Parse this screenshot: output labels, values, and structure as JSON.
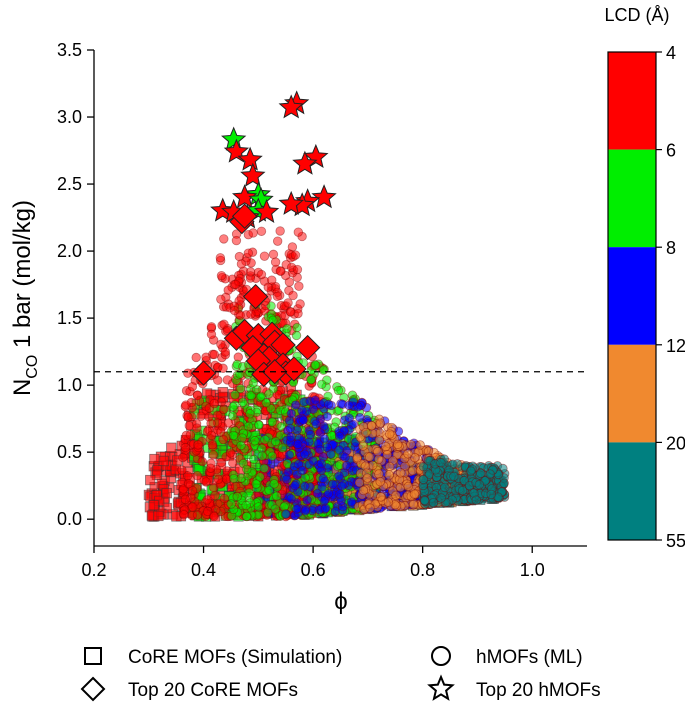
{
  "chart_data": {
    "type": "scatter",
    "xlabel": "ϕ",
    "ylabel": "N",
    "ylabel_sub": "CO",
    "ylabel_rest": " 1 bar (mol/kg)",
    "xlim": [
      0.2,
      1.1
    ],
    "ylim": [
      -0.2,
      3.5
    ],
    "xticks": [
      0.2,
      0.4,
      0.6,
      0.8,
      1.0
    ],
    "xtick_labels": [
      "0.2",
      "0.4",
      "0.6",
      "0.8",
      "1.0"
    ],
    "yticks": [
      0.0,
      0.5,
      1.0,
      1.5,
      2.0,
      2.5,
      3.0,
      3.5
    ],
    "ytick_labels": [
      "0.0",
      "0.5",
      "1.0",
      "1.5",
      "2.0",
      "2.5",
      "3.0",
      "3.5"
    ],
    "threshold_line": {
      "y": 1.1,
      "style": "dashed"
    },
    "colorbar": {
      "title": "LCD (Å)",
      "tick_labels": [
        "4",
        "6",
        "8",
        "12",
        "20",
        "55"
      ],
      "bands": [
        {
          "from": "4",
          "to": "6",
          "color": "#ff0000"
        },
        {
          "from": "6",
          "to": "8",
          "color": "#00ee00"
        },
        {
          "from": "8",
          "to": "12",
          "color": "#0000ff"
        },
        {
          "from": "12",
          "to": "20",
          "color": "#f0892f"
        },
        {
          "from": "20",
          "to": "55",
          "color": "#008080"
        }
      ]
    },
    "legend": [
      {
        "marker": "square",
        "label": "CoRE MOFs (Simulation)"
      },
      {
        "marker": "circle",
        "label": "hMOFs (ML)"
      },
      {
        "marker": "diamond",
        "label": "Top 20 CoRE MOFs"
      },
      {
        "marker": "star",
        "label": "Top 20 hMOFs"
      }
    ],
    "series": [
      {
        "name": "Top 20 hMOFs",
        "marker": "star",
        "points": [
          {
            "x": 0.57,
            "y": 3.1,
            "c": "#ff0000"
          },
          {
            "x": 0.56,
            "y": 3.07,
            "c": "#ff0000"
          },
          {
            "x": 0.455,
            "y": 2.83,
            "c": "#00ee00"
          },
          {
            "x": 0.46,
            "y": 2.74,
            "c": "#ff0000"
          },
          {
            "x": 0.485,
            "y": 2.68,
            "c": "#ff0000"
          },
          {
            "x": 0.605,
            "y": 2.7,
            "c": "#ff0000"
          },
          {
            "x": 0.585,
            "y": 2.65,
            "c": "#ff0000"
          },
          {
            "x": 0.49,
            "y": 2.56,
            "c": "#ff0000"
          },
          {
            "x": 0.5,
            "y": 2.42,
            "c": "#00ee00"
          },
          {
            "x": 0.475,
            "y": 2.4,
            "c": "#ff0000"
          },
          {
            "x": 0.505,
            "y": 2.38,
            "c": "#00ee00"
          },
          {
            "x": 0.62,
            "y": 2.4,
            "c": "#ff0000"
          },
          {
            "x": 0.59,
            "y": 2.37,
            "c": "#ff0000"
          },
          {
            "x": 0.58,
            "y": 2.34,
            "c": "#ff0000"
          },
          {
            "x": 0.56,
            "y": 2.35,
            "c": "#ff0000"
          },
          {
            "x": 0.435,
            "y": 2.3,
            "c": "#ff0000"
          },
          {
            "x": 0.455,
            "y": 2.29,
            "c": "#ff0000"
          },
          {
            "x": 0.5,
            "y": 2.3,
            "c": "#00ee00"
          },
          {
            "x": 0.515,
            "y": 2.29,
            "c": "#ff0000"
          },
          {
            "x": 0.48,
            "y": 2.25,
            "c": "#ff0000"
          }
        ]
      },
      {
        "name": "Top 20 CoRE MOFs",
        "marker": "diamond",
        "points": [
          {
            "x": 0.47,
            "y": 2.22,
            "c": "#ff0000"
          },
          {
            "x": 0.475,
            "y": 2.26,
            "c": "#ff0000"
          },
          {
            "x": 0.495,
            "y": 1.66,
            "c": "#ff0000"
          },
          {
            "x": 0.46,
            "y": 1.35,
            "c": "#ff0000"
          },
          {
            "x": 0.475,
            "y": 1.4,
            "c": "#ff0000"
          },
          {
            "x": 0.5,
            "y": 1.37,
            "c": "#ff0000"
          },
          {
            "x": 0.525,
            "y": 1.38,
            "c": "#ff0000"
          },
          {
            "x": 0.53,
            "y": 1.32,
            "c": "#ff0000"
          },
          {
            "x": 0.545,
            "y": 1.3,
            "c": "#ff0000"
          },
          {
            "x": 0.49,
            "y": 1.28,
            "c": "#ff0000"
          },
          {
            "x": 0.51,
            "y": 1.22,
            "c": "#ff0000"
          },
          {
            "x": 0.52,
            "y": 1.2,
            "c": "#ff0000"
          },
          {
            "x": 0.5,
            "y": 1.18,
            "c": "#ff0000"
          },
          {
            "x": 0.545,
            "y": 1.15,
            "c": "#ff0000"
          },
          {
            "x": 0.59,
            "y": 1.28,
            "c": "#ff0000"
          },
          {
            "x": 0.4,
            "y": 1.09,
            "c": "#ff0000"
          },
          {
            "x": 0.51,
            "y": 1.08,
            "c": "#ff0000"
          },
          {
            "x": 0.55,
            "y": 1.09,
            "c": "#ff0000"
          },
          {
            "x": 0.565,
            "y": 1.12,
            "c": "#ff0000"
          },
          {
            "x": 0.53,
            "y": 1.1,
            "c": "#ff0000"
          }
        ]
      }
    ],
    "bulk_series": [
      {
        "name": "hMOFs (ML)",
        "marker": "circle",
        "description": "dense cloud of ~thousands of points colored by LCD",
        "lcd_groups": [
          {
            "color": "#ff0000",
            "x_range": [
              0.36,
              0.62
            ],
            "y_peak": 2.1
          },
          {
            "color": "#00ee00",
            "x_range": [
              0.45,
              0.72
            ],
            "y_peak": 1.6
          },
          {
            "color": "#0000ff",
            "x_range": [
              0.55,
              0.82
            ],
            "y_peak": 0.9
          },
          {
            "color": "#f0892f",
            "x_range": [
              0.68,
              0.9
            ],
            "y_peak": 0.75
          },
          {
            "color": "#008080",
            "x_range": [
              0.8,
              0.95
            ],
            "y_peak": 0.45
          }
        ]
      },
      {
        "name": "CoRE MOFs (Simulation)",
        "marker": "square",
        "description": "dense cloud of squares colored by LCD",
        "lcd_groups": [
          {
            "color": "#ff0000",
            "x_range": [
              0.3,
              0.6
            ],
            "y_peak": 1.0
          },
          {
            "color": "#00ee00",
            "x_range": [
              0.38,
              0.7
            ],
            "y_peak": 0.9
          },
          {
            "color": "#0000ff",
            "x_range": [
              0.5,
              0.8
            ],
            "y_peak": 0.6
          },
          {
            "color": "#f0892f",
            "x_range": [
              0.62,
              0.88
            ],
            "y_peak": 0.5
          },
          {
            "color": "#008080",
            "x_range": [
              0.78,
              0.94
            ],
            "y_peak": 0.4
          }
        ]
      }
    ]
  }
}
